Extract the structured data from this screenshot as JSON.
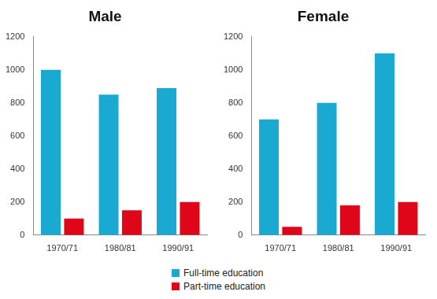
{
  "chart_data": [
    {
      "type": "bar",
      "title": "Male",
      "categories": [
        "1970/71",
        "1980/81",
        "1990/91"
      ],
      "series": [
        {
          "name": "Full-time education",
          "color": "#1aa9d0",
          "values": [
            1000,
            850,
            890
          ]
        },
        {
          "name": "Part-time education",
          "color": "#e0061a",
          "values": [
            100,
            150,
            200
          ]
        }
      ],
      "ylim": [
        0,
        1200
      ],
      "yticks": [
        0,
        200,
        400,
        600,
        800,
        1000,
        1200
      ],
      "grid": false,
      "legend": "bottom"
    },
    {
      "type": "bar",
      "title": "Female",
      "categories": [
        "1970/71",
        "1980/81",
        "1990/91"
      ],
      "series": [
        {
          "name": "Full-time education",
          "color": "#1aa9d0",
          "values": [
            700,
            800,
            1100
          ]
        },
        {
          "name": "Part-time education",
          "color": "#e0061a",
          "values": [
            50,
            180,
            200
          ]
        }
      ],
      "ylim": [
        0,
        1200
      ],
      "yticks": [
        0,
        200,
        400,
        600,
        800,
        1000,
        1200
      ],
      "grid": false
    }
  ]
}
